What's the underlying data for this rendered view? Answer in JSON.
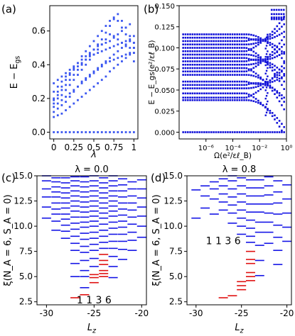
{
  "panels": {
    "a": {
      "label": "(a)"
    },
    "b": {
      "label": "(b)"
    },
    "c": {
      "label": "(c)"
    },
    "d": {
      "label": "(d)"
    }
  },
  "chart_data": [
    {
      "id": "a",
      "type": "scatter",
      "xlabel": "λ",
      "ylabel": "E − E_gs",
      "xlim": [
        -0.05,
        1.05
      ],
      "ylim": [
        -0.04,
        0.75
      ],
      "xticks": [
        "0",
        "0.25",
        "0.5",
        "0.75",
        "1"
      ],
      "xtick_values": [
        0,
        0.25,
        0.5,
        0.75,
        1
      ],
      "yticks": [
        "0.0",
        "0.2",
        "0.4",
        "0.6"
      ],
      "ytick_values": [
        0,
        0.2,
        0.4,
        0.6
      ],
      "color": "#3a56f0",
      "x": [
        0,
        0.05,
        0.1,
        0.15,
        0.2,
        0.25,
        0.3,
        0.35,
        0.4,
        0.45,
        0.5,
        0.55,
        0.6,
        0.65,
        0.7,
        0.75,
        0.8,
        0.85,
        0.9,
        0.95,
        1.0
      ],
      "series": [
        {
          "values": [
            0,
            0,
            0,
            0,
            0,
            0,
            0,
            0,
            0,
            0,
            0,
            0,
            0,
            0,
            0,
            0,
            0,
            0,
            0,
            0,
            0
          ]
        },
        {
          "values": [
            0.09,
            0.1,
            0.11,
            0.13,
            0.15,
            0.17,
            0.19,
            0.21,
            0.23,
            0.25,
            0.27,
            0.29,
            0.31,
            0.33,
            0.36,
            0.38,
            0.4,
            0.42,
            0.44,
            0.46,
            0.47
          ]
        },
        {
          "values": [
            0.15,
            0.17,
            0.19,
            0.21,
            0.23,
            0.25,
            0.27,
            0.29,
            0.31,
            0.33,
            0.35,
            0.37,
            0.39,
            0.41,
            0.42,
            0.43,
            0.44,
            0.45,
            0.46,
            0.47,
            0.42
          ]
        },
        {
          "values": [
            0.17,
            0.2,
            0.22,
            0.25,
            0.28,
            0.31,
            0.34,
            0.37,
            0.4,
            0.43,
            0.46,
            0.49,
            0.52,
            0.55,
            0.58,
            0.57,
            0.55,
            0.53,
            0.51,
            0.5,
            0.47
          ]
        },
        {
          "values": [
            0.19,
            0.22,
            0.25,
            0.28,
            0.31,
            0.34,
            0.37,
            0.4,
            0.43,
            0.46,
            0.49,
            0.52,
            0.55,
            0.59,
            0.63,
            0.67,
            0.7,
            0.66,
            0.62,
            0.57,
            0.5
          ]
        },
        {
          "values": [
            0.2,
            0.24,
            0.27,
            0.31,
            0.34,
            0.38,
            0.41,
            0.45,
            0.48,
            0.51,
            0.54,
            0.57,
            0.6,
            0.63,
            0.66,
            0.68,
            0.66,
            0.62,
            0.58,
            0.54,
            0.5
          ]
        },
        {
          "values": [
            0.24,
            0.27,
            0.3,
            0.33,
            0.35,
            0.37,
            0.39,
            0.41,
            0.43,
            0.45,
            0.46,
            0.47,
            0.48,
            0.49,
            0.5,
            0.51,
            0.52,
            0.53,
            0.54,
            0.55,
            0.53
          ]
        },
        {
          "values": [
            0.29,
            0.31,
            0.33,
            0.35,
            0.37,
            0.39,
            0.41,
            0.43,
            0.45,
            0.47,
            0.49,
            0.51,
            0.52,
            0.53,
            0.54,
            0.56,
            0.58,
            0.6,
            0.62,
            0.64,
            0.57
          ]
        },
        {
          "values": [
            0.12,
            0.14,
            0.16,
            0.18,
            0.21,
            0.24,
            0.27,
            0.3,
            0.32,
            0.34,
            0.36,
            0.38,
            0.4,
            0.42,
            0.44,
            0.46,
            0.48,
            0.5,
            0.52,
            0.54,
            0.53
          ]
        }
      ]
    },
    {
      "id": "b",
      "type": "scatter",
      "xlabel": "Ω(e²/εℓ_B)",
      "ylabel": "E − E_gs(e²/εℓ_B)",
      "xscale": "log",
      "xlim": [
        1e-08,
        1
      ],
      "ylim": [
        -0.008,
        0.15
      ],
      "xticks": [
        "10⁻⁶",
        "10⁻⁴",
        "10⁻²",
        "10⁰"
      ],
      "xtick_values": [
        1e-06,
        0.0001,
        0.01,
        1
      ],
      "yticks": [
        "0.000",
        "0.025",
        "0.050",
        "0.075",
        "0.100",
        "0.125",
        "0.150"
      ],
      "ytick_values": [
        0,
        0.025,
        0.05,
        0.075,
        0.1,
        0.125,
        0.15
      ],
      "color": "#1010d8",
      "levels": [
        0,
        0.038,
        0.041,
        0.046,
        0.052,
        0.056,
        0.06,
        0.068,
        0.072,
        0.076,
        0.08,
        0.084,
        0.088,
        0.092,
        0.096,
        0.1,
        0.104,
        0.108,
        0.112,
        0.116
      ],
      "split_start_log10": -3,
      "upper_branch": [
        0.134,
        0.136,
        0.14,
        0.145
      ]
    },
    {
      "id": "c",
      "type": "entanglement_spectrum",
      "title": "λ = 0.0",
      "xlabel": "L_z",
      "ylabel": "ξ(N_A = 6, S_A = 0)",
      "xlim": [
        -31,
        -19.5
      ],
      "ylim": [
        2.2,
        15
      ],
      "xticks": [
        "-30",
        "-25",
        "-20"
      ],
      "xtick_values": [
        -30,
        -25,
        -20
      ],
      "yticks": [
        "2.5",
        "5.0",
        "7.5",
        "10.0",
        "12.5",
        "15.0"
      ],
      "ytick_values": [
        2.5,
        5,
        7.5,
        10,
        12.5,
        15
      ],
      "annotation": "1 1 3 6",
      "annotation_pos": {
        "x": -25,
        "y": 2.35
      },
      "counting_levels": [
        {
          "Lz": -27,
          "xi": [
            2.9
          ]
        },
        {
          "Lz": -26,
          "xi": [
            3.2
          ]
        },
        {
          "Lz": -25,
          "xi": [
            4.4,
            4.9,
            5.2
          ]
        },
        {
          "Lz": -24,
          "xi": [
            5.0,
            5.3,
            5.6,
            6.2,
            6.6,
            7.2
          ]
        }
      ],
      "bulk": [
        {
          "Lz": -30,
          "xi": [
            10.8,
            11.9,
            12.9,
            13.7,
            14.5,
            15.0
          ]
        },
        {
          "Lz": -29,
          "xi": [
            9.6,
            10.5,
            11.2,
            11.7,
            12.3,
            12.9,
            13.4,
            13.9,
            14.4,
            14.8
          ]
        },
        {
          "Lz": -28,
          "xi": [
            8.8,
            9.5,
            10.1,
            10.7,
            11.2,
            11.8,
            12.3,
            12.8,
            13.3,
            13.8,
            14.3,
            14.8
          ]
        },
        {
          "Lz": -27,
          "xi": [
            5.0,
            6.3,
            7.6,
            8.3,
            9.0,
            9.7,
            10.3,
            10.9,
            11.5,
            12.0,
            12.5,
            13.0,
            13.5,
            14.0,
            14.5,
            14.9
          ]
        },
        {
          "Lz": -26,
          "xi": [
            3.9,
            5.0,
            5.6,
            6.6,
            7.4,
            8.0,
            8.7,
            9.3,
            9.9,
            10.4,
            10.9,
            11.4,
            11.9,
            12.4,
            12.9,
            13.4,
            13.9,
            14.4,
            14.9
          ]
        },
        {
          "Lz": -25,
          "xi": [
            6.0,
            6.8,
            7.6,
            8.2,
            8.8,
            9.4,
            10.0,
            10.5,
            11.0,
            11.5,
            12.0,
            12.5,
            13.0,
            13.5,
            14.0,
            14.5,
            15.0
          ]
        },
        {
          "Lz": -24,
          "xi": [
            7.8,
            8.4,
            9.0,
            9.6,
            10.2,
            10.8,
            11.3,
            11.8,
            12.3,
            12.8,
            13.3,
            13.8,
            14.3,
            14.8
          ]
        },
        {
          "Lz": -23,
          "xi": [
            4.9,
            6.0,
            7.0,
            7.8,
            8.5,
            9.2,
            9.8,
            10.4,
            11.0,
            11.5,
            12.0,
            12.5,
            13.0,
            13.5,
            14.0,
            14.5,
            15.0
          ]
        },
        {
          "Lz": -22,
          "xi": [
            6.7,
            7.7,
            8.5,
            9.2,
            9.9,
            10.5,
            11.1,
            11.7,
            12.3,
            12.9,
            13.5,
            14.1,
            14.7
          ]
        },
        {
          "Lz": -21,
          "xi": [
            7.6,
            8.6,
            9.4,
            10.2,
            10.9,
            11.6,
            12.3,
            13.0,
            13.7,
            14.4
          ]
        },
        {
          "Lz": -20,
          "xi": [
            8.9,
            10.0,
            11.0,
            11.9,
            12.8,
            13.7,
            14.6
          ]
        }
      ]
    },
    {
      "id": "d",
      "type": "entanglement_spectrum",
      "title": "λ = 0.8",
      "xlabel": "L_z",
      "ylabel": "ξ(N_A = 6, S_A = 0)",
      "xlim": [
        -31,
        -19.5
      ],
      "ylim": [
        2.2,
        15
      ],
      "xticks": [
        "-30",
        "-25",
        "-20"
      ],
      "xtick_values": [
        -30,
        -25,
        -20
      ],
      "yticks": [
        "2.5",
        "5.0",
        "7.5",
        "10.0",
        "12.5",
        "15.0"
      ],
      "ytick_values": [
        2.5,
        5,
        7.5,
        10,
        12.5,
        15
      ],
      "annotation": "1 1 3 6",
      "annotation_pos": {
        "x": -27,
        "y": 8.2
      },
      "counting_levels": [
        {
          "Lz": -27,
          "xi": [
            2.9
          ]
        },
        {
          "Lz": -26,
          "xi": [
            3.1
          ]
        },
        {
          "Lz": -25,
          "xi": [
            3.7,
            4.1,
            4.5
          ]
        },
        {
          "Lz": -24,
          "xi": [
            4.6,
            5.0,
            5.4,
            6.3,
            6.7,
            7.5
          ]
        }
      ],
      "bulk": [
        {
          "Lz": -30,
          "xi": [
            10.8,
            13.6
          ]
        },
        {
          "Lz": -29,
          "xi": [
            11.8,
            13.0,
            14.0
          ]
        },
        {
          "Lz": -28,
          "xi": [
            11.2,
            12.7,
            13.7,
            14.4
          ]
        },
        {
          "Lz": -27,
          "xi": [
            11.6,
            12.4,
            13.2,
            14.0,
            14.7
          ]
        },
        {
          "Lz": -26,
          "xi": [
            10.3,
            11.3,
            12.1,
            12.9,
            13.7,
            14.5,
            15.0
          ]
        },
        {
          "Lz": -25,
          "xi": [
            9.2,
            10.0,
            10.8,
            11.6,
            12.4,
            13.2,
            14.0,
            14.8
          ]
        },
        {
          "Lz": -24,
          "xi": [
            8.4,
            9.0,
            9.8,
            10.6,
            11.4,
            12.2,
            13.0,
            13.8,
            14.6
          ]
        },
        {
          "Lz": -23,
          "xi": [
            5.1,
            6.6,
            8.1,
            9.4,
            10.4,
            11.4,
            12.2,
            13.0,
            13.8,
            14.6
          ]
        },
        {
          "Lz": -22,
          "xi": [
            8.3,
            9.4,
            10.4,
            11.3,
            12.2,
            13.1,
            14.0,
            14.9
          ]
        },
        {
          "Lz": -21,
          "xi": [
            6.2,
            7.6,
            8.9,
            10.1,
            11.2,
            12.3,
            13.4,
            14.5
          ]
        },
        {
          "Lz": -20,
          "xi": [
            8.5,
            9.9,
            11.3,
            12.7,
            14.1
          ]
        }
      ]
    }
  ]
}
